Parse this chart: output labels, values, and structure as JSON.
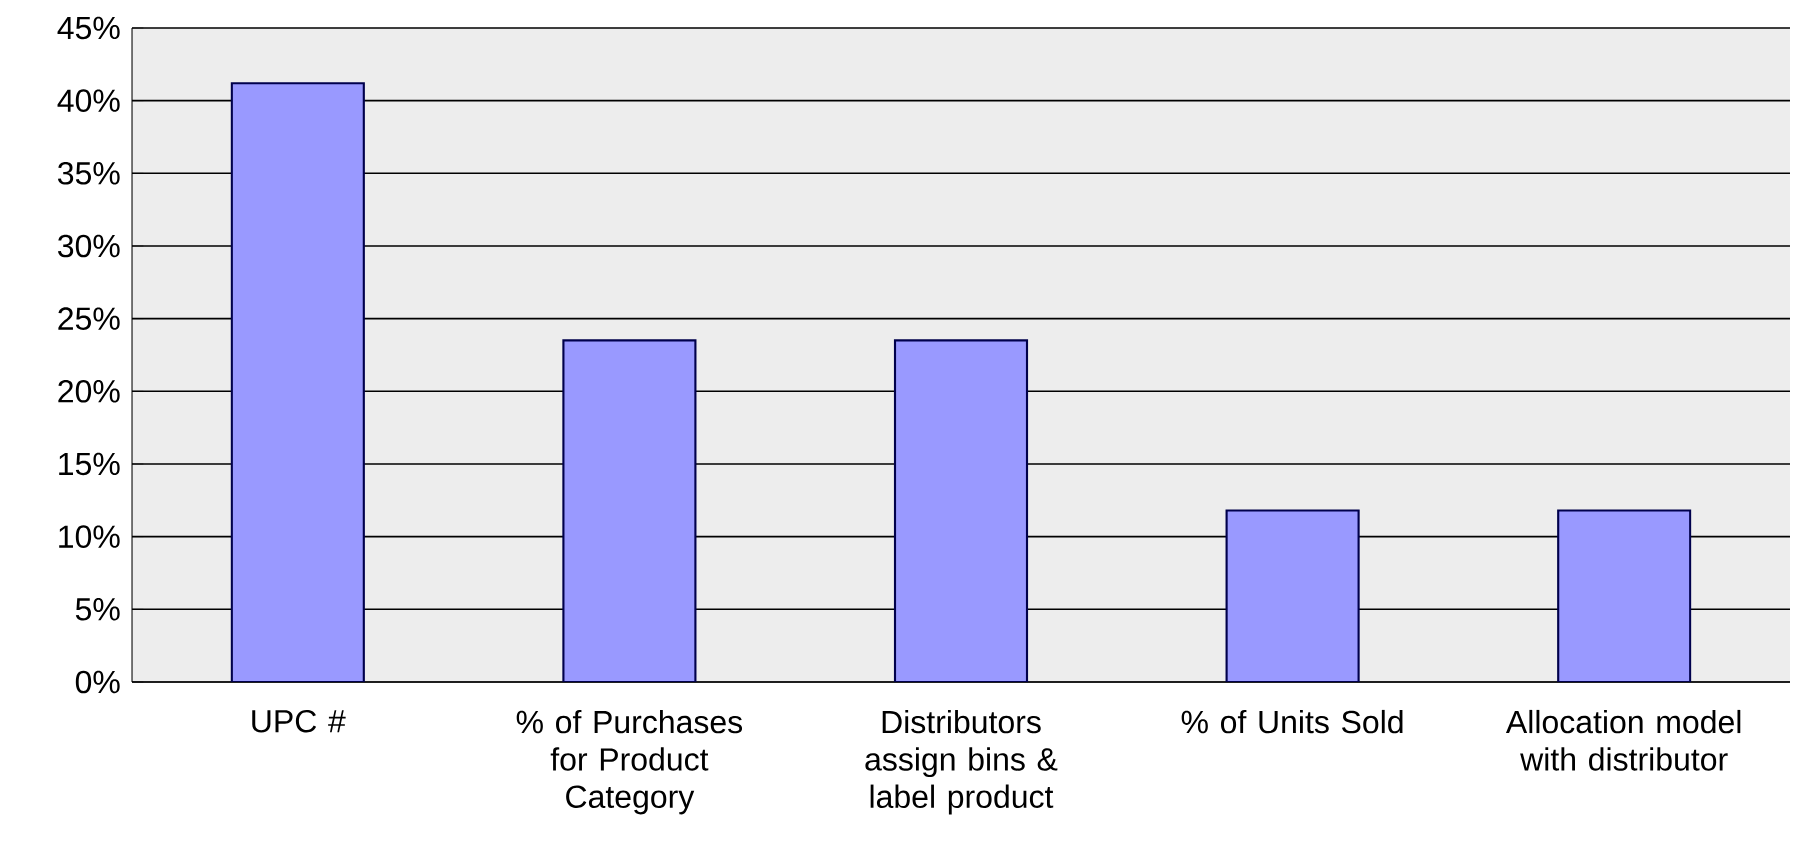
{
  "chart_data": {
    "type": "bar",
    "categories": [
      "UPC #",
      "% of Purchases for Product Category",
      "Distributors assign bins & label product",
      "% of Units Sold",
      "Allocation model with distributor"
    ],
    "values": [
      41.2,
      23.5,
      23.5,
      11.8,
      11.8
    ],
    "color": "#9999ff",
    "ylim": [
      0,
      45
    ],
    "yticks": [
      {
        "value": 0,
        "label": "0%"
      },
      {
        "value": 5,
        "label": "5%"
      },
      {
        "value": 10,
        "label": "10%"
      },
      {
        "value": 15,
        "label": "15%"
      },
      {
        "value": 20,
        "label": "20%"
      },
      {
        "value": 25,
        "label": "25%"
      },
      {
        "value": 30,
        "label": "30%"
      },
      {
        "value": 35,
        "label": "35%"
      },
      {
        "value": 40,
        "label": "40%"
      },
      {
        "value": 45,
        "label": "45%"
      }
    ],
    "grid": "y"
  }
}
